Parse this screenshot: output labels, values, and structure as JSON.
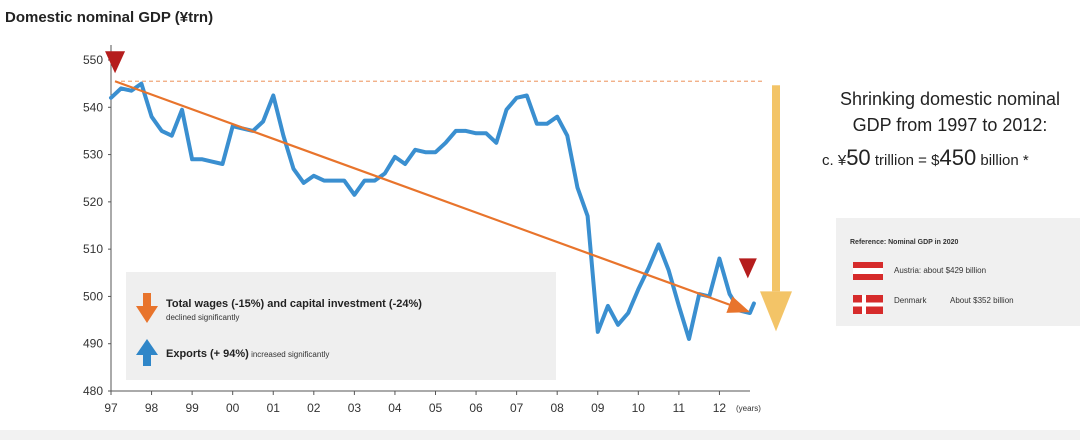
{
  "chart_data": {
    "type": "line",
    "title": "Domestic nominal GDP (¥trn)",
    "xlabel": "(years)",
    "ylabel": "",
    "ylim": [
      480,
      550
    ],
    "xlim": [
      1997,
      2013
    ],
    "yticks": [
      "480",
      "490",
      "500",
      "510",
      "520",
      "530",
      "540",
      "550"
    ],
    "xticks": [
      {
        "label": "97",
        "value": 1997
      },
      {
        "label": "98",
        "value": 1998
      },
      {
        "label": "99",
        "value": 1999
      },
      {
        "label": "00",
        "value": 2000
      },
      {
        "label": "01",
        "value": 2001
      },
      {
        "label": "02",
        "value": 2002
      },
      {
        "label": "03",
        "value": 2003
      },
      {
        "label": "04",
        "value": 2004
      },
      {
        "label": "05",
        "value": 2005
      },
      {
        "label": "06",
        "value": 2006
      },
      {
        "label": "07",
        "value": 2007
      },
      {
        "label": "08",
        "value": 2008
      },
      {
        "label": "09",
        "value": 2009
      },
      {
        "label": "10",
        "value": 2010
      },
      {
        "label": "11",
        "value": 2011
      },
      {
        "label": "12",
        "value": 2012
      }
    ],
    "grid": false,
    "series": [
      {
        "name": "",
        "color": "#3a8fd0",
        "x": [
          1997.0,
          1997.25,
          1997.5,
          1997.75,
          1998.0,
          1998.25,
          1998.5,
          1998.75,
          1999.0,
          1999.25,
          1999.5,
          1999.75,
          2000.0,
          2000.25,
          2000.5,
          2000.75,
          2001.0,
          2001.25,
          2001.5,
          2001.75,
          2002.0,
          2002.25,
          2002.5,
          2002.75,
          2003.0,
          2003.25,
          2003.5,
          2003.75,
          2004.0,
          2004.25,
          2004.5,
          2004.75,
          2005.0,
          2005.25,
          2005.5,
          2005.75,
          2006.0,
          2006.25,
          2006.5,
          2006.75,
          2007.0,
          2007.25,
          2007.5,
          2007.75,
          2008.0,
          2008.25,
          2008.5,
          2008.75,
          2009.0,
          2009.25,
          2009.5,
          2009.75,
          2010.0,
          2010.25,
          2010.5,
          2010.75,
          2011.0,
          2011.25,
          2011.5,
          2011.75,
          2012.0,
          2012.25,
          2012.5,
          2012.75,
          2012.85
        ],
        "values": [
          542,
          544,
          543.5,
          545,
          538,
          535,
          534,
          539.5,
          529,
          529,
          528.5,
          528,
          536,
          535.5,
          535,
          537,
          542.5,
          534,
          527,
          524,
          525.5,
          524.5,
          524.5,
          524.5,
          521.5,
          524.5,
          524.5,
          526,
          529.5,
          528,
          531,
          530.5,
          530.5,
          532.5,
          535,
          535,
          534.5,
          534.5,
          532.5,
          539.5,
          542,
          542.5,
          536.5,
          536.5,
          538,
          534,
          523,
          517,
          492.5,
          498,
          494,
          496.5,
          501.5,
          506,
          511,
          505.5,
          498,
          491,
          500.5,
          500,
          508,
          500.5,
          497,
          496.5,
          498.5
        ]
      }
    ],
    "annotations": {
      "trend_start": {
        "x": 1997.0,
        "y": 545.5
      },
      "trend_end": {
        "x": 2012.8,
        "y": 497
      },
      "reference_level": 545.5,
      "peak_marker": {
        "x": 1997.1,
        "y": 545.5
      },
      "trough_marker": {
        "x": 2012.7,
        "y": 500
      },
      "drop_arrow": {
        "from": 545.5,
        "to": 496
      }
    }
  },
  "annotation": {
    "line1": "Shrinking domestic nominal",
    "line2": "GDP from 1997 to 2012:",
    "line3_prefix": "c. ¥",
    "line3_val1": "50",
    "line3_mid1": " trillion = $",
    "line3_val2": "450",
    "line3_mid2": " billion *"
  },
  "legend": {
    "down_strong": "Total wages (-15%) and capital investment (-24%)",
    "down_sub": "declined significantly",
    "up_strong": "Exports (+ 94%)",
    "up_sub": " increased significantly"
  },
  "reference": {
    "title": "Reference: Nominal GDP in 2020",
    "austria": "Austria: about $429 billion",
    "denmark_country": "Denmark",
    "denmark_value": "About $352 billion"
  },
  "colors": {
    "series": "#3a8fd0",
    "trend": "#e8742c",
    "drop_arrow": "#f3c467",
    "marker": "#b51d1d",
    "legend_bg": "#efefef",
    "reference_bg": "#f0f0f0"
  }
}
